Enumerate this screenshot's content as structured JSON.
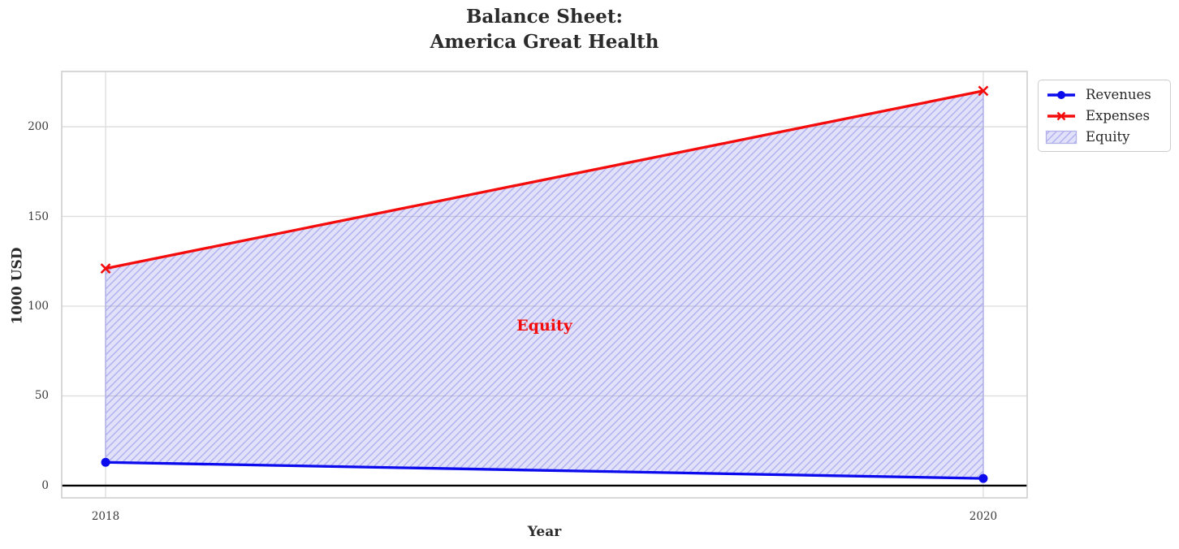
{
  "title": "Balance Sheet:\nAmerica Great Health",
  "chart_data": {
    "type": "line",
    "title": "Balance Sheet: America Great Health",
    "xlabel": "Year",
    "ylabel": "1000 USD",
    "x": [
      2018,
      2020
    ],
    "series": [
      {
        "name": "Revenues",
        "values": [
          13,
          4
        ],
        "color": "#0b0bee",
        "marker": "circle"
      },
      {
        "name": "Expenses",
        "values": [
          121,
          220
        ],
        "color": "#f40b0b",
        "marker": "x"
      }
    ],
    "equity_fill": {
      "label": "Equity",
      "between": [
        "Revenues",
        "Expenses"
      ],
      "facecolor": "rgba(104,104,228,0.20)",
      "hatch_color": "rgba(104,104,228,0.42)",
      "edge_color": "#b2b2e8",
      "hatch": "/"
    },
    "annotation": {
      "text": "Equity",
      "x": 2019.0,
      "y": 89,
      "color": "#f40b0b"
    },
    "xticks": [
      2018,
      2020
    ],
    "yticks": [
      0,
      50,
      100,
      150,
      200
    ],
    "xlim": [
      2017.9,
      2020.1
    ],
    "ylim": [
      -6.8,
      230.8
    ],
    "axhline": 0,
    "grid": true,
    "legend_position": "upper right, outside plot",
    "colors": {
      "grid": "#dcdcdc",
      "spine": "#cccccc",
      "axhline": "#000000",
      "tick_text": "#3a3a3a",
      "title_text": "#2b2b2b"
    }
  }
}
